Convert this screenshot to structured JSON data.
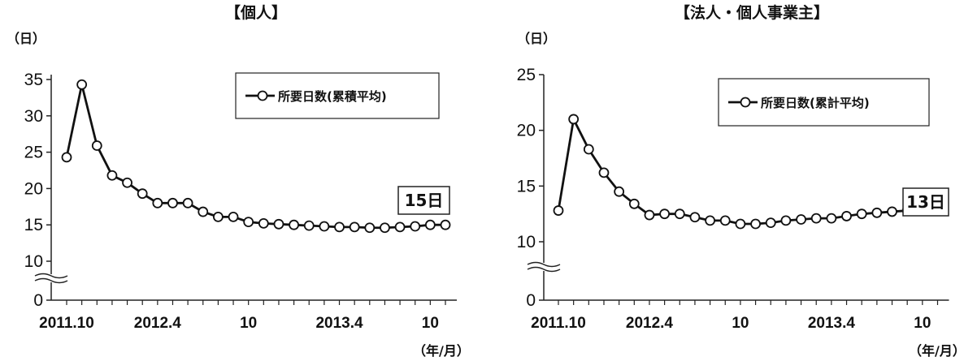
{
  "chart_data": [
    {
      "type": "line",
      "title": "【個人】",
      "ylabel": "（日）",
      "xlabel": "（年/月）",
      "ylim": [
        0,
        35
      ],
      "yticks": [
        0,
        10,
        15,
        20,
        25,
        30,
        35
      ],
      "x_tick_labels": [
        "2011.10",
        "2012.4",
        "10",
        "2013.4",
        "10"
      ],
      "x_tick_positions": [
        0,
        6,
        12,
        18,
        24
      ],
      "axis_break": true,
      "legend": {
        "label": "所要日数(累積平均)",
        "position": "top-right"
      },
      "annotation": "15日",
      "series": [
        {
          "name": "所要日数(累積平均)",
          "x": [
            0,
            1,
            2,
            3,
            4,
            5,
            6,
            7,
            8,
            9,
            10,
            11,
            12,
            13,
            14,
            15,
            16,
            17,
            18,
            19,
            20,
            21,
            22,
            23,
            24,
            25
          ],
          "values": [
            24.3,
            34.3,
            25.9,
            21.8,
            20.8,
            19.3,
            18.0,
            18.0,
            18.0,
            16.8,
            16.1,
            16.1,
            15.4,
            15.2,
            15.1,
            15.0,
            14.9,
            14.8,
            14.7,
            14.7,
            14.6,
            14.6,
            14.7,
            14.8,
            15.0,
            15.0
          ]
        }
      ]
    },
    {
      "type": "line",
      "title": "【法人・個人事業主】",
      "ylabel": "（日）",
      "xlabel": "（年/月）",
      "ylim": [
        0,
        25
      ],
      "yticks": [
        0,
        10,
        15,
        20,
        25
      ],
      "x_tick_labels": [
        "2011.10",
        "2012.4",
        "10",
        "2013.4",
        "10"
      ],
      "x_tick_positions": [
        0,
        6,
        12,
        18,
        24
      ],
      "axis_break": true,
      "legend": {
        "label": "所要日数(累計平均)",
        "position": "top-right"
      },
      "annotation": "13日",
      "series": [
        {
          "name": "所要日数(累計平均)",
          "x": [
            0,
            1,
            2,
            3,
            4,
            5,
            6,
            7,
            8,
            9,
            10,
            11,
            12,
            13,
            14,
            15,
            16,
            17,
            18,
            19,
            20,
            21,
            22,
            23,
            24,
            25
          ],
          "values": [
            12.8,
            21.0,
            18.3,
            16.2,
            14.5,
            13.4,
            12.4,
            12.5,
            12.5,
            12.2,
            11.9,
            11.9,
            11.6,
            11.6,
            11.7,
            11.9,
            12.0,
            12.1,
            12.1,
            12.3,
            12.5,
            12.6,
            12.7,
            12.8,
            12.9,
            13.0
          ]
        }
      ]
    }
  ]
}
